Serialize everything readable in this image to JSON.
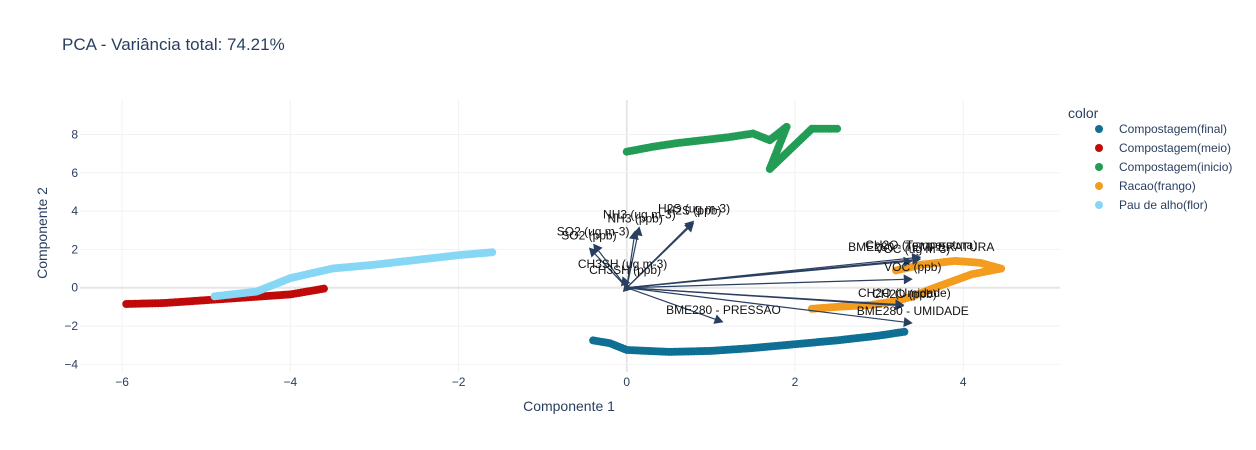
{
  "chart_data": {
    "type": "scatter",
    "title": "PCA - Variância total: 74.21%",
    "xlabel": "Componente 1",
    "ylabel": "Componente 2",
    "xlim": [
      -6.5,
      5.15
    ],
    "ylim": [
      -4.4,
      9.8
    ],
    "xticks": [
      -6,
      -4,
      -2,
      0,
      2,
      4
    ],
    "yticks": [
      -4,
      -2,
      0,
      2,
      4,
      6,
      8
    ],
    "xtick_labels": [
      "−6",
      "−4",
      "−2",
      "0",
      "2",
      "4"
    ],
    "ytick_labels": [
      "−4",
      "−2",
      "0",
      "2",
      "4",
      "6",
      "8"
    ],
    "grid": true,
    "legend_title": "color",
    "legend_position": "right",
    "series": [
      {
        "name": "Compostagem(final)",
        "color": "#0f6f95",
        "path": [
          [
            -0.4,
            -2.75
          ],
          [
            -0.2,
            -2.9
          ],
          [
            0,
            -3.25
          ],
          [
            0.5,
            -3.35
          ],
          [
            1.0,
            -3.3
          ],
          [
            1.5,
            -3.15
          ],
          [
            2.0,
            -2.95
          ],
          [
            2.5,
            -2.75
          ],
          [
            3.0,
            -2.5
          ],
          [
            3.3,
            -2.3
          ]
        ]
      },
      {
        "name": "Compostagem(meio)",
        "color": "#c00a0a",
        "path": [
          [
            -5.95,
            -0.85
          ],
          [
            -5.5,
            -0.8
          ],
          [
            -5.0,
            -0.65
          ],
          [
            -4.5,
            -0.5
          ],
          [
            -4.0,
            -0.35
          ],
          [
            -3.6,
            -0.05
          ]
        ]
      },
      {
        "name": "Compostagem(inicio)",
        "color": "#239c55",
        "path": [
          [
            0,
            7.1
          ],
          [
            0.3,
            7.35
          ],
          [
            0.6,
            7.55
          ],
          [
            0.9,
            7.7
          ],
          [
            1.2,
            7.85
          ],
          [
            1.5,
            8.05
          ],
          [
            1.7,
            7.7
          ],
          [
            1.9,
            8.4
          ],
          [
            1.7,
            6.2
          ],
          [
            2.2,
            8.3
          ],
          [
            2.5,
            8.3
          ]
        ]
      },
      {
        "name": "Racao(frango)",
        "color": "#f39c1f",
        "path": [
          [
            2.2,
            -1.1
          ],
          [
            2.5,
            -1.0
          ],
          [
            2.9,
            -0.9
          ],
          [
            3.2,
            -0.7
          ],
          [
            3.4,
            -0.45
          ],
          [
            3.6,
            -0.1
          ],
          [
            3.85,
            0.3
          ],
          [
            4.1,
            0.7
          ],
          [
            4.45,
            1.0
          ],
          [
            4.2,
            1.3
          ],
          [
            3.9,
            1.4
          ],
          [
            3.5,
            1.2
          ],
          [
            3.2,
            0.9
          ]
        ]
      },
      {
        "name": "Pau de alho(flor)",
        "color": "#85d7f5",
        "path": [
          [
            -4.9,
            -0.45
          ],
          [
            -4.4,
            -0.2
          ],
          [
            -4.0,
            0.5
          ],
          [
            -3.5,
            1.0
          ],
          [
            -3.0,
            1.2
          ],
          [
            -2.5,
            1.45
          ],
          [
            -2.0,
            1.7
          ],
          [
            -1.6,
            1.85
          ]
        ]
      }
    ],
    "loadings": [
      {
        "label": "NH3 (ug m-3)",
        "x": 0.15,
        "y": 3.2
      },
      {
        "label": "H2S (ug m-3)",
        "x": 0.8,
        "y": 3.5
      },
      {
        "label": "NH3 (ppb)",
        "x": 0.1,
        "y": 3.0
      },
      {
        "label": "H2S (ppb)",
        "x": 0.8,
        "y": 3.4
      },
      {
        "label": "SO2 (ug m-3)",
        "x": -0.4,
        "y": 2.3
      },
      {
        "label": "SO2 (ppb)",
        "x": -0.45,
        "y": 2.1
      },
      {
        "label": "CH3SH (ug m-3)",
        "x": -0.05,
        "y": 0.6
      },
      {
        "label": "CH3SH (ppb)",
        "x": -0.02,
        "y": 0.3
      },
      {
        "label": "CH2O (Temperatura)",
        "x": 3.5,
        "y": 1.6
      },
      {
        "label": "BME280 - TEMPERATURA",
        "x": 3.5,
        "y": 1.5
      },
      {
        "label": "VOC (ug m-3)",
        "x": 3.4,
        "y": 1.4
      },
      {
        "label": "VOC (ppb)",
        "x": 3.4,
        "y": 0.45
      },
      {
        "label": "CH2O (Umidade)",
        "x": 3.3,
        "y": -0.9
      },
      {
        "label": "CH2O (ppb)",
        "x": 3.3,
        "y": -0.95
      },
      {
        "label": "BME280 - PRESSAO",
        "x": 1.15,
        "y": -1.8
      },
      {
        "label": "BME280 - UMIDADE",
        "x": 3.4,
        "y": -1.85
      }
    ],
    "loading_color": "#2a3f5f"
  }
}
